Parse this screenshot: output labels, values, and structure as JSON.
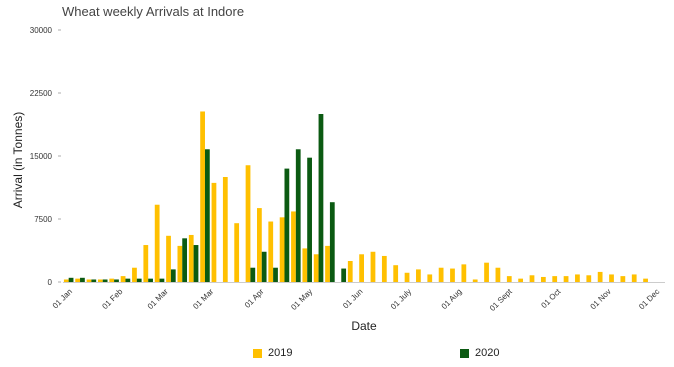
{
  "chart_data": {
    "type": "bar",
    "title": "Wheat weekly Arrivals at Indore",
    "xlabel": "Date",
    "ylabel": "Arrival (in Tonnes)",
    "ylim": [
      0,
      30000
    ],
    "yticks": [
      "0",
      "7500",
      "15000",
      "22500",
      "30000"
    ],
    "ytick_values": [
      0,
      7500,
      15000,
      22500,
      30000
    ],
    "xtick_labels": [
      {
        "label": "01 Jan",
        "week": 0
      },
      {
        "label": "01 Feb",
        "week": 4.43
      },
      {
        "label": "01 Mar",
        "week": 8.43
      },
      {
        "label": "01 Mar",
        "week": 12.43
      },
      {
        "label": "01 Apr",
        "week": 16.86
      },
      {
        "label": "01 May",
        "week": 21.14
      },
      {
        "label": "01 Jun",
        "week": 25.57
      },
      {
        "label": "01 July",
        "week": 29.86
      },
      {
        "label": "01 Aug",
        "week": 34.29
      },
      {
        "label": "01 Sept",
        "week": 38.71
      },
      {
        "label": "01 Oct",
        "week": 43.0
      },
      {
        "label": "01 Nov",
        "week": 47.43
      },
      {
        "label": "01 Dec",
        "week": 51.71
      }
    ],
    "weeks": 53,
    "series": [
      {
        "name": "2019",
        "color": "#FFC000",
        "values": [
          300,
          400,
          300,
          300,
          400,
          700,
          1700,
          4400,
          9200,
          5500,
          4300,
          5600,
          20300,
          11800,
          12500,
          7000,
          13900,
          8800,
          7200,
          7700,
          8400,
          4000,
          3300,
          4300,
          0,
          2500,
          3300,
          3600,
          3100,
          2000,
          1100,
          1500,
          900,
          1700,
          1600,
          2100,
          300,
          2300,
          1700,
          700,
          400,
          800,
          600,
          700,
          700,
          900,
          800,
          1200,
          900,
          700,
          900,
          400,
          0
        ]
      },
      {
        "name": "2020",
        "color": "#0B5A12",
        "values": [
          500,
          500,
          300,
          300,
          300,
          400,
          400,
          400,
          400,
          1500,
          5200,
          4400,
          15800,
          0,
          0,
          0,
          1700,
          3600,
          1700,
          13500,
          15800,
          14800,
          20000,
          9500,
          1600,
          0,
          0,
          0,
          0,
          0,
          0,
          0,
          0,
          0,
          0,
          0,
          0,
          0,
          0,
          0,
          0,
          0,
          0,
          0,
          0,
          0,
          0,
          0,
          0,
          0,
          0,
          0,
          0
        ]
      }
    ],
    "grid": false,
    "legend_position": "bottom"
  }
}
